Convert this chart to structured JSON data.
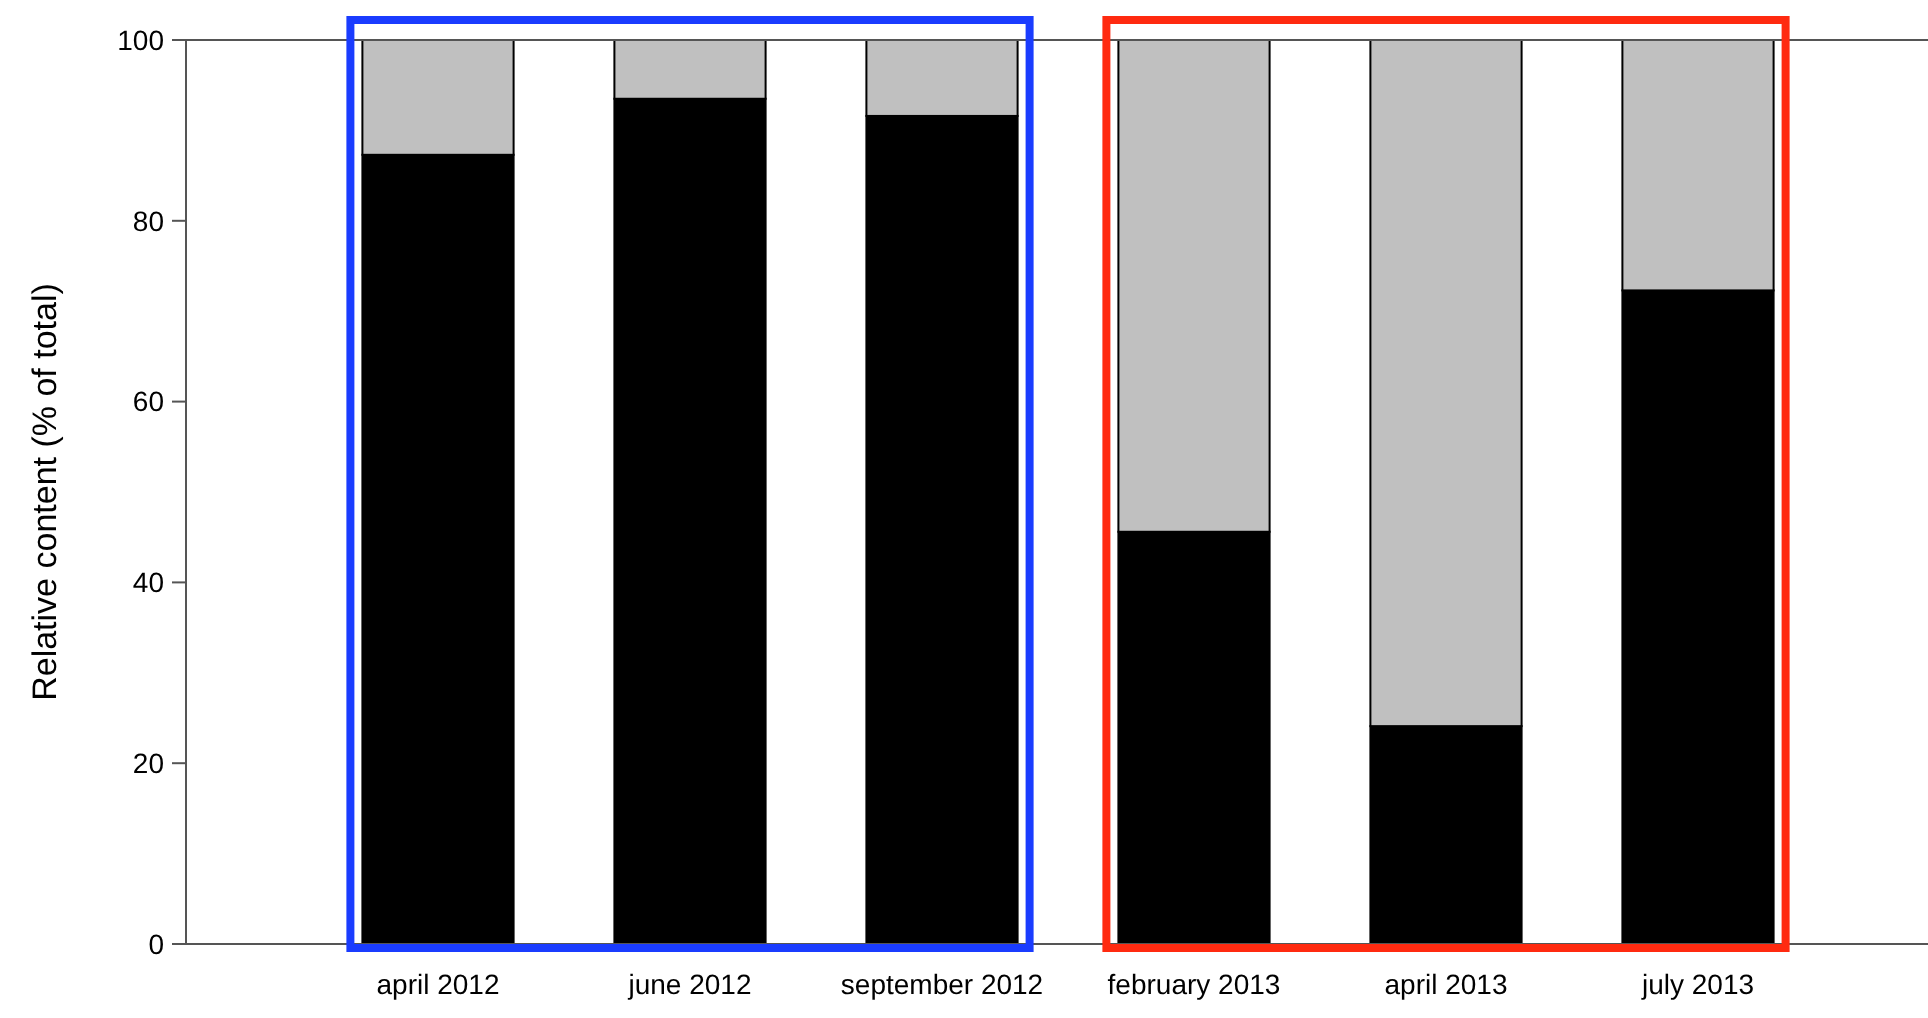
{
  "chart_data": {
    "type": "bar",
    "ylabel": "Relative content (% of total)",
    "categories": [
      "april 2012",
      "june 2012",
      "september 2012",
      "february 2013",
      "april 2013",
      "july 2013"
    ],
    "stacked": true,
    "series": [
      {
        "color": "#000000",
        "values": [
          87.3,
          93.5,
          91.6,
          45.6,
          24.1,
          72.3
        ]
      },
      {
        "color": "#c0c0c0",
        "values": [
          12.7,
          6.5,
          8.4,
          54.4,
          75.9,
          27.7
        ]
      }
    ],
    "ylim": [
      0,
      100
    ],
    "yticks": [
      0,
      20,
      40,
      60,
      80,
      100
    ]
  }
}
